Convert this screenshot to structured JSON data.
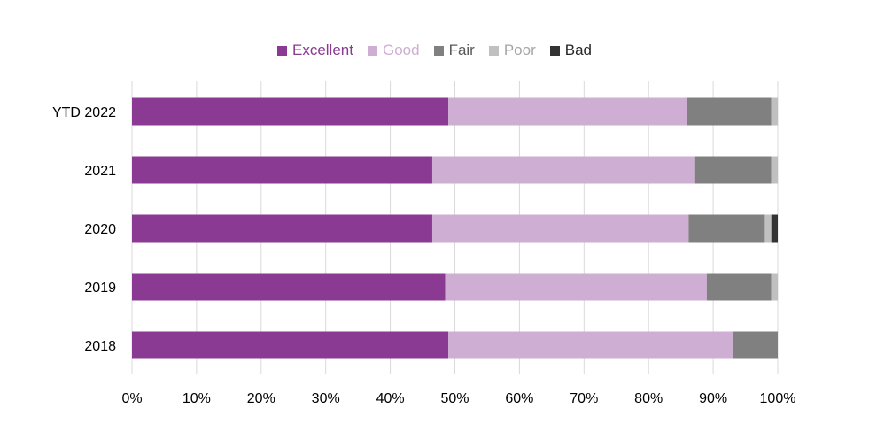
{
  "colors": {
    "excellent": "#8B3A93",
    "good": "#CFAED4",
    "fair": "#808080",
    "poor": "#C0C0C0",
    "bad": "#333333",
    "legend_text": [
      "#8B3A93",
      "#CFAED4",
      "#595959",
      "#A6A6A6",
      "#262626"
    ]
  },
  "legend": [
    {
      "label": "Excellent"
    },
    {
      "label": "Good"
    },
    {
      "label": "Fair"
    },
    {
      "label": "Poor"
    },
    {
      "label": "Bad"
    }
  ],
  "chart_data": {
    "type": "bar",
    "orientation": "horizontal",
    "stacked": "percent",
    "categories": [
      "YTD 2022",
      "2021",
      "2020",
      "2019",
      "2018"
    ],
    "series": [
      {
        "name": "Excellent",
        "values": [
          49,
          46.5,
          46.5,
          48.5,
          49
        ]
      },
      {
        "name": "Good",
        "values": [
          37,
          40.7,
          39.7,
          40.5,
          44
        ]
      },
      {
        "name": "Fair",
        "values": [
          13,
          11.8,
          11.8,
          10,
          7
        ]
      },
      {
        "name": "Poor",
        "values": [
          1,
          1,
          1,
          1,
          0
        ]
      },
      {
        "name": "Bad",
        "values": [
          0,
          0,
          1,
          0,
          0
        ]
      }
    ],
    "xlim": [
      0,
      100
    ],
    "x_ticks": [
      "0%",
      "10%",
      "20%",
      "30%",
      "40%",
      "50%",
      "60%",
      "70%",
      "80%",
      "90%",
      "100%"
    ],
    "grid": "vertical",
    "legend_position": "top"
  }
}
